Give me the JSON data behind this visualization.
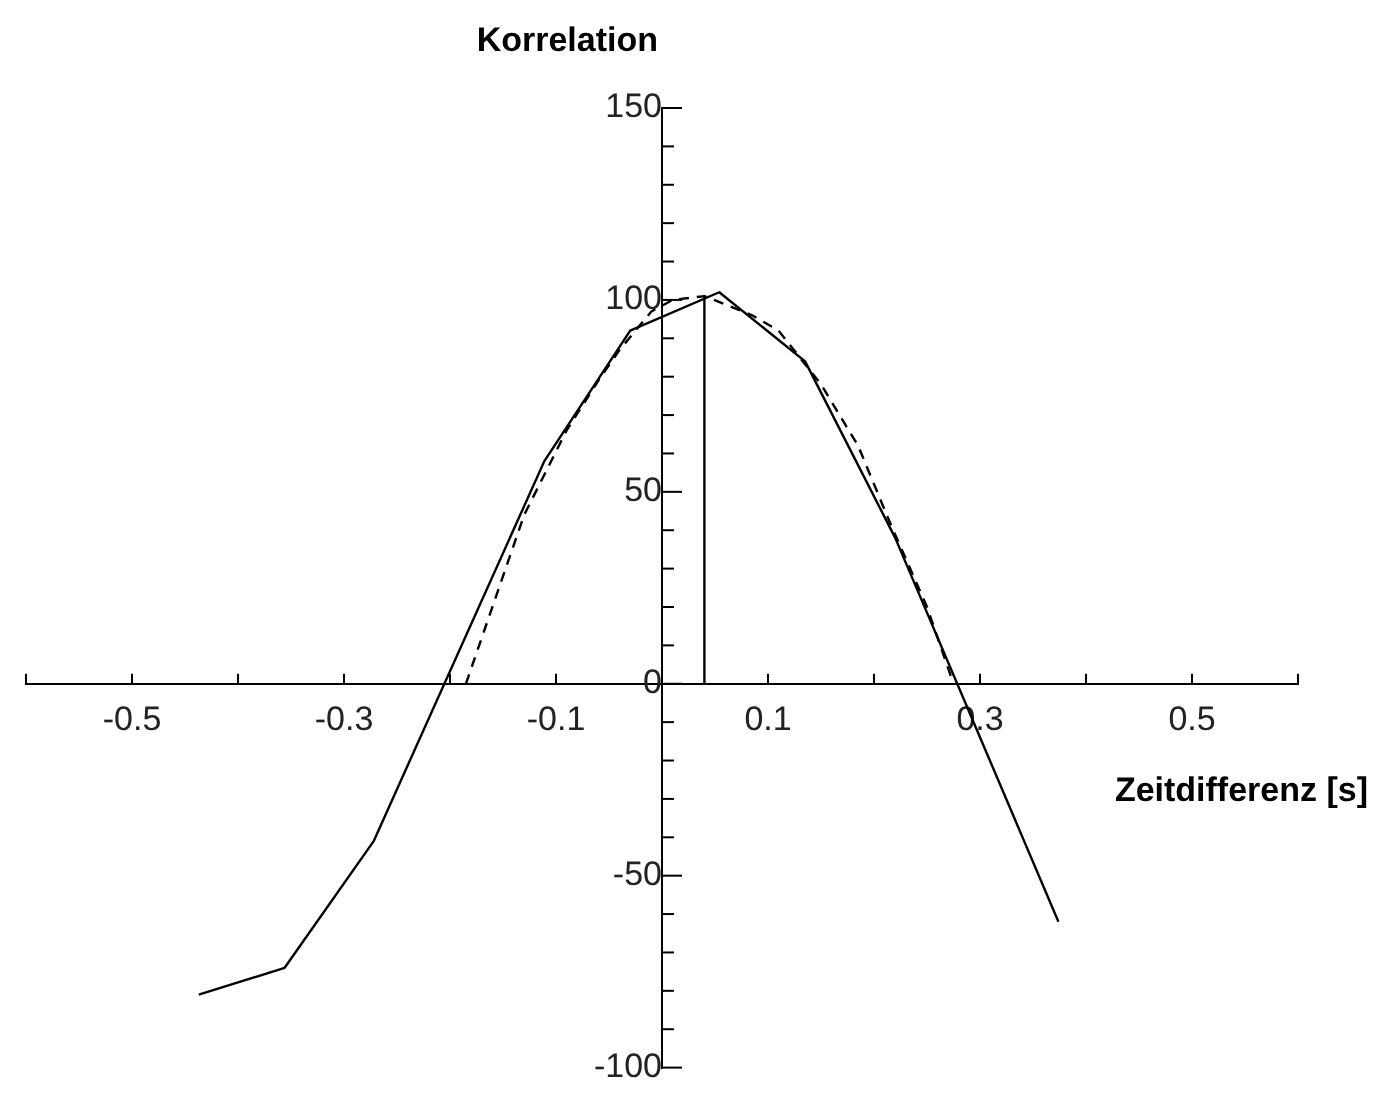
{
  "chart_data": {
    "type": "line",
    "xlabel": "Zeitdifferenz [s]",
    "ylabel": "Korrelation",
    "xlim": [
      -0.6,
      0.6
    ],
    "ylim": [
      -100,
      150
    ],
    "xticks": [
      {
        "value": -0.6,
        "label": null
      },
      -0.5,
      {
        "value": -0.4,
        "label": null
      },
      -0.3,
      {
        "value": -0.2,
        "label": null
      },
      -0.1,
      {
        "value": 0,
        "label": null
      },
      0.1,
      {
        "value": 0.2,
        "label": null
      },
      0.3,
      {
        "value": 0.4,
        "label": null
      },
      0.5,
      {
        "value": 0.6,
        "label": null
      }
    ],
    "yticks": [
      -100,
      {
        "value": -90,
        "label": null
      },
      {
        "value": -80,
        "label": null
      },
      {
        "value": -70,
        "label": null
      },
      {
        "value": -60,
        "label": null
      },
      -50,
      {
        "value": -40,
        "label": null
      },
      {
        "value": -30,
        "label": null
      },
      {
        "value": -20,
        "label": null
      },
      {
        "value": -10,
        "label": null
      },
      0,
      {
        "value": 10,
        "label": null
      },
      {
        "value": 20,
        "label": null
      },
      {
        "value": 30,
        "label": null
      },
      {
        "value": 40,
        "label": null
      },
      50,
      {
        "value": 60,
        "label": null
      },
      {
        "value": 70,
        "label": null
      },
      {
        "value": 80,
        "label": null
      },
      {
        "value": 90,
        "label": null
      },
      100,
      {
        "value": 110,
        "label": null
      },
      {
        "value": 120,
        "label": null
      },
      {
        "value": 130,
        "label": null
      },
      {
        "value": 140,
        "label": null
      },
      150
    ],
    "grid": false,
    "legend": false,
    "marker": "none",
    "series": [
      {
        "color": "#000000",
        "line_style": "solid",
        "x": [
          -0.437,
          -0.356,
          -0.272,
          -0.111,
          -0.03,
          0.054,
          0.135,
          0.22,
          0.374
        ],
        "values": [
          -81,
          -74,
          -41,
          58,
          92,
          102,
          84,
          38,
          -62
        ]
      },
      {
        "color": "#000000",
        "line_style": "dashed",
        "x": [
          -0.185,
          -0.155,
          -0.13,
          -0.09,
          -0.06,
          -0.04,
          -0.01,
          0.01,
          0.04,
          0.085,
          0.11,
          0.15,
          0.185,
          0.215,
          0.25,
          0.275
        ],
        "values": [
          0,
          24,
          44,
          66,
          79,
          87,
          97,
          100,
          101,
          96,
          92,
          78,
          62,
          42,
          20,
          0
        ]
      },
      {
        "color": "#000000",
        "line_style": "solid",
        "x": [
          0.04,
          0.04
        ],
        "values": [
          0,
          101
        ]
      }
    ]
  }
}
